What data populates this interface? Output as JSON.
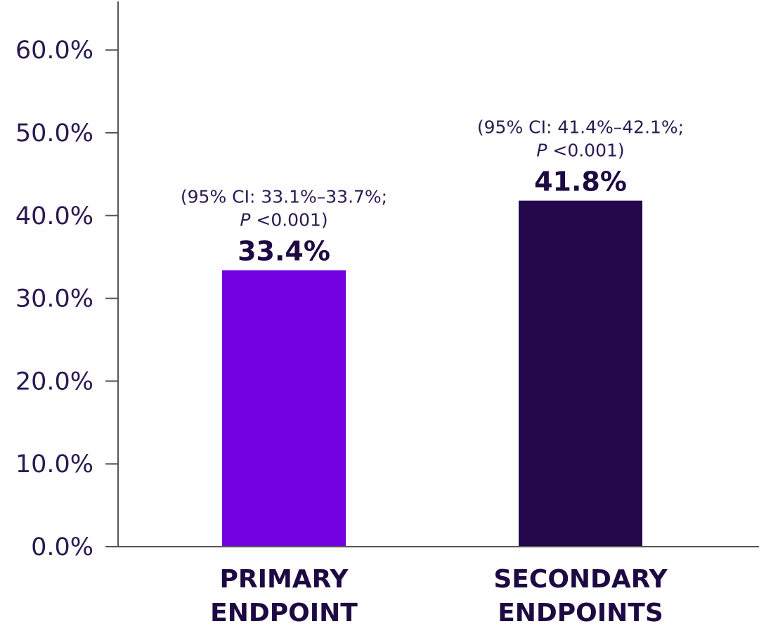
{
  "chart_data": {
    "type": "bar",
    "title": "",
    "xlabel": "",
    "ylabel": "",
    "ylim": [
      0,
      66
    ],
    "yticks": [
      0,
      10,
      20,
      30,
      40,
      50,
      60
    ],
    "ytick_labels": [
      "0.0%",
      "10.0%",
      "20.0%",
      "30.0%",
      "40.0%",
      "50.0%",
      "60.0%"
    ],
    "grid": false,
    "bars": [
      {
        "category": "PRIMARY ENDPOINT",
        "category_lines": [
          "PRIMARY",
          "ENDPOINT"
        ],
        "value": 33.4,
        "value_label": "33.4%",
        "ci_line1": "(95% CI: 33.1%–33.7%;",
        "ci_p_letter": "P",
        "ci_p_rest": " <0.001)",
        "color": "#7300e0"
      },
      {
        "category": "SECONDARY ENDPOINTS",
        "category_lines": [
          "SECONDARY",
          "ENDPOINTS"
        ],
        "value": 41.8,
        "value_label": "41.8%",
        "ci_line1": "(95% CI: 41.4%–42.1%;",
        "ci_p_letter": "P",
        "ci_p_rest": " <0.001)",
        "color": "#23074a"
      }
    ],
    "axis_color": "#555555"
  }
}
